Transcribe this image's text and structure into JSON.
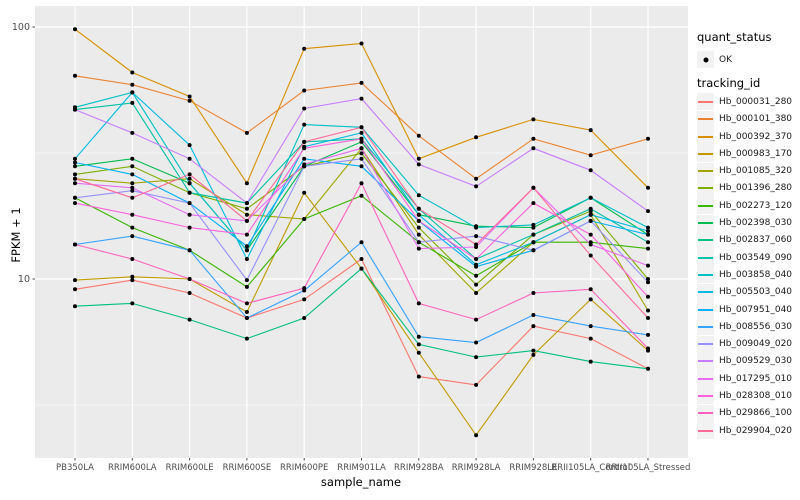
{
  "colors": {
    "panel_background": "#EBEBEB",
    "gridline": "#FFFFFF",
    "axis_text": "#4D4D4D",
    "axis_title": "#000000",
    "point": "#000000",
    "legend_key_background": "#F2F2F2"
  },
  "legend": {
    "quant_status": {
      "title": "quant_status",
      "items": [
        {
          "label": "OK",
          "marker": "point"
        }
      ]
    },
    "tracking_id": {
      "title": "tracking_id"
    }
  },
  "chart_data": {
    "type": "line",
    "title": "",
    "xlabel": "sample_name",
    "ylabel": "FPKM + 1",
    "y_scale": "log10",
    "y_ticks": [
      100,
      10
    ],
    "y_minor_gridlines": [
      31.62,
      3.162
    ],
    "ylim": [
      1.95,
      121
    ],
    "grid": true,
    "legend_position": "right",
    "point_marker": "black dot (quant_status OK) at every sample for every series",
    "x_categories": [
      "PB350LA",
      "RRIM600LA",
      "RRIM600LE",
      "RRIM600SE",
      "RRIM600PE",
      "RRIM901LA",
      "RRIM928BA",
      "RRIM928LA",
      "RRIM928LE",
      "RRII105LA_Control",
      "RRII105LA_Stressed"
    ],
    "series": [
      {
        "name": "Hb_000031_280",
        "color": "#F8766D",
        "values": [
          9.1,
          9.9,
          8.8,
          7.0,
          8.3,
          12.0,
          4.1,
          3.8,
          6.5,
          5.8,
          4.4
        ]
      },
      {
        "name": "Hb_000101_380",
        "color": "#EA8331",
        "values": [
          64,
          59,
          51,
          38,
          56,
          60,
          37,
          25,
          36,
          31,
          36
        ]
      },
      {
        "name": "Hb_000392_370",
        "color": "#D89000",
        "values": [
          98,
          66,
          53,
          24,
          82,
          86,
          30,
          36.5,
          43,
          39,
          23
        ]
      },
      {
        "name": "Hb_000983_170",
        "color": "#C09B00",
        "values": [
          9.9,
          10.2,
          10.0,
          7.4,
          22,
          11,
          5.1,
          2.4,
          5.0,
          8.3,
          5.2
        ]
      },
      {
        "name": "Hb_001085_320",
        "color": "#A3A500",
        "values": [
          25,
          24,
          25,
          18,
          17.3,
          33,
          15,
          8.8,
          14,
          18,
          7.5
        ]
      },
      {
        "name": "Hb_001396_280",
        "color": "#7CAE00",
        "values": [
          26,
          28,
          22,
          19,
          28,
          31.5,
          16,
          9.5,
          15,
          18.6,
          10
        ]
      },
      {
        "name": "Hb_002273_120",
        "color": "#39B600",
        "values": [
          21,
          16,
          13,
          9.3,
          17.3,
          21.4,
          14,
          10.3,
          14,
          14,
          13.2
        ]
      },
      {
        "name": "Hb_002398_030",
        "color": "#00BB4E",
        "values": [
          28,
          30,
          24,
          13,
          28,
          35,
          18,
          16.2,
          16,
          21,
          15
        ]
      },
      {
        "name": "Hb_002837_060",
        "color": "#00BF7D",
        "values": [
          7.8,
          8.0,
          6.9,
          5.8,
          7.0,
          11,
          5.5,
          4.9,
          5.2,
          4.7,
          4.4
        ]
      },
      {
        "name": "Hb_003549_090",
        "color": "#00C1A3",
        "values": [
          47,
          50,
          22,
          20,
          35,
          36,
          19,
          12,
          15,
          19,
          14
        ]
      },
      {
        "name": "Hb_003858_040",
        "color": "#00BFC4",
        "values": [
          48,
          55,
          24,
          13,
          41,
          40,
          21.5,
          16,
          16.4,
          21,
          16
        ]
      },
      {
        "name": "Hb_005503_040",
        "color": "#00BAE0",
        "values": [
          30,
          55,
          34,
          12,
          33.5,
          38,
          18,
          11.4,
          14,
          18,
          15.5
        ]
      },
      {
        "name": "Hb_007951_040",
        "color": "#00B0F6",
        "values": [
          29,
          26,
          20,
          13.5,
          30,
          28,
          17,
          11.2,
          13,
          17,
          15
        ]
      },
      {
        "name": "Hb_008556_030",
        "color": "#35A2FF",
        "values": [
          13.7,
          14.8,
          13,
          7.0,
          9.0,
          14,
          5.9,
          5.6,
          7.2,
          6.5,
          6.0
        ]
      },
      {
        "name": "Hb_009049_020",
        "color": "#9590FF",
        "values": [
          21,
          22.4,
          20,
          9.9,
          28,
          30,
          14,
          14.8,
          13,
          17,
          9.7
        ]
      },
      {
        "name": "Hb_009529_030",
        "color": "#C77CFF",
        "values": [
          47,
          38,
          30,
          20,
          47.5,
          52,
          28.5,
          23.3,
          33,
          27,
          18.6
        ]
      },
      {
        "name": "Hb_017295_010",
        "color": "#E76BF3",
        "values": [
          24,
          23,
          18,
          17,
          28.5,
          33,
          13.2,
          13.4,
          23,
          13.7,
          11.3
        ]
      },
      {
        "name": "Hb_028308_010",
        "color": "#FA62DB",
        "values": [
          20,
          18,
          16,
          15,
          33,
          36,
          17,
          12,
          20,
          15,
          8.5
        ]
      },
      {
        "name": "Hb_029866_100",
        "color": "#FF62BC",
        "values": [
          13.7,
          12,
          10,
          8,
          9.2,
          24,
          8,
          6.9,
          8.8,
          9.1,
          5.3
        ]
      },
      {
        "name": "Hb_029904_020",
        "color": "#FF6A98",
        "values": [
          25,
          21,
          26,
          17,
          35,
          40,
          19,
          13.7,
          23,
          12.4,
          7.0
        ]
      }
    ]
  }
}
